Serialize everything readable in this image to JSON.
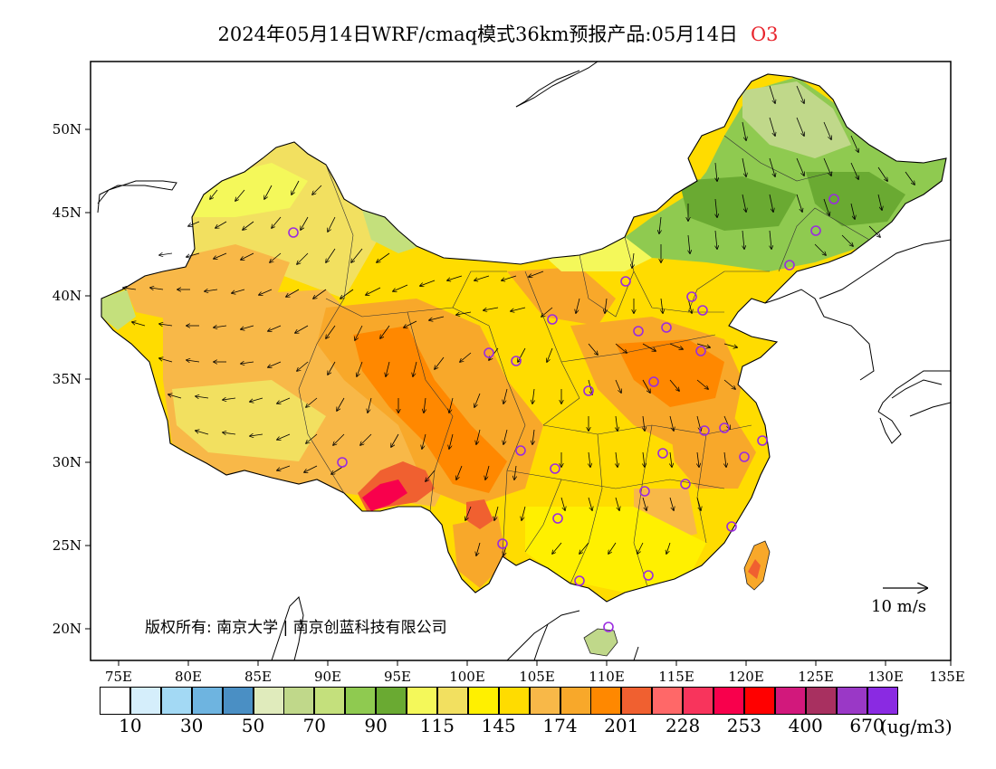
{
  "title": {
    "text": "2024年05月14日WRF/cmaq模式36km预报产品:05月14日",
    "pollutant": "O3"
  },
  "map": {
    "lat_ticks": [
      "50N",
      "45N",
      "40N",
      "35N",
      "30N",
      "25N",
      "20N"
    ],
    "lon_ticks": [
      "75E",
      "80E",
      "85E",
      "90E",
      "95E",
      "100E",
      "105E",
      "110E",
      "115E",
      "120E",
      "125E",
      "130E",
      "135E"
    ],
    "wind_reference": "10 m/s",
    "copyright": "版权所有: 南京大学 | 南京创蓝科技有限公司"
  },
  "colorbar": {
    "colors": [
      "#ffffff",
      "#d5eefb",
      "#a3d9f4",
      "#6eb4e0",
      "#4a8fc4",
      "#e0ebbc",
      "#c0d88a",
      "#c4e07c",
      "#8fca50",
      "#6aaa32",
      "#f4f85a",
      "#f2e060",
      "#fff000",
      "#ffdc00",
      "#f8b848",
      "#f8a82a",
      "#ff8800",
      "#f06030",
      "#ff6868",
      "#f8345c",
      "#f8004c",
      "#ff0000",
      "#d2187c",
      "#a83060",
      "#9a38c6",
      "#8a2ae2"
    ],
    "labels": [
      "10",
      "30",
      "50",
      "70",
      "90",
      "115",
      "145",
      "174",
      "201",
      "228",
      "253",
      "400",
      "670"
    ],
    "units": "(ug/m3)"
  }
}
